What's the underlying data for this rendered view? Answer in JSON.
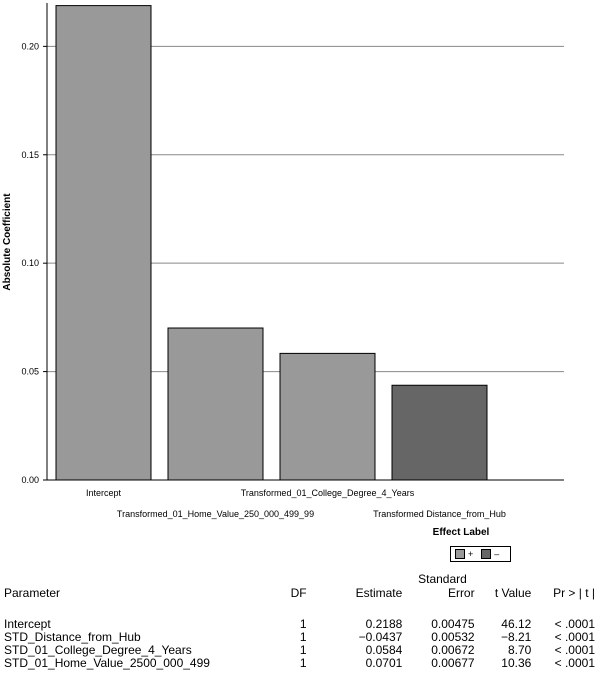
{
  "chart_data": {
    "type": "bar",
    "xlabel": "Effect Label",
    "ylabel": "Absolute Coefficient",
    "ylim": [
      0,
      0.22
    ],
    "yticks": [
      "0.00",
      "0.05",
      "0.10",
      "0.15",
      "0.20"
    ],
    "grid": true,
    "categories": [
      "Intercept",
      "Transformed_01_Home_Value_250_000_499_99",
      "Transformed_01_College_Degree_4_Years",
      "Transformed Distance_from_Hub"
    ],
    "values": [
      0.2188,
      0.0701,
      0.0584,
      0.0437
    ],
    "signs": [
      "+",
      "+",
      "+",
      "-"
    ],
    "colors": {
      "positive": "#999999",
      "negative": "#666666"
    },
    "legend": {
      "position": "bottom-right",
      "positive_label": "+",
      "negative_label": "–"
    }
  },
  "table": {
    "headers": {
      "parameter": "Parameter",
      "df": "DF",
      "estimate": "Estimate",
      "se_top": "Standard",
      "se_bottom": "Error",
      "tvalue": "t Value",
      "pvalue": "Pr > | t |"
    },
    "rows": [
      {
        "parameter": "Intercept",
        "df": "1",
        "estimate": "0.2188",
        "se": "0.00475",
        "t": "46.12",
        "p": "< .0001"
      },
      {
        "parameter": "STD_Distance_from_Hub",
        "df": "1",
        "estimate": "−0.0437",
        "se": "0.00532",
        "t": "−8.21",
        "p": "< .0001"
      },
      {
        "parameter": "STD_01_College_Degree_4_Years",
        "df": "1",
        "estimate": "0.0584",
        "se": "0.00672",
        "t": "8.70",
        "p": "< .0001"
      },
      {
        "parameter": "STD_01_Home_Value_2500_000_499",
        "df": "1",
        "estimate": "0.0701",
        "se": "0.00677",
        "t": "10.36",
        "p": "< .0001"
      }
    ]
  }
}
